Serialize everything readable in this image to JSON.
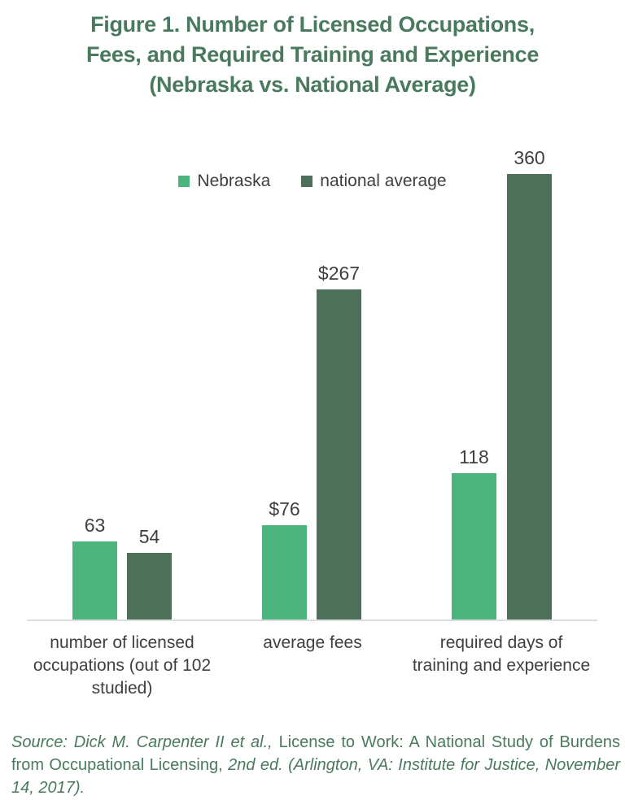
{
  "figure": {
    "title_lines": [
      "Figure 1. Number of Licensed Occupations,",
      "Fees, and Required Training and Experience",
      "(Nebraska vs. National Average)"
    ]
  },
  "colors": {
    "title_green": "#497a5d",
    "nebraska_green": "#4bb57d",
    "national_average_green": "#4c7059",
    "label_gray": "#3f3f3f",
    "axis_line_gray": "#dedede"
  },
  "chart_data": {
    "type": "bar",
    "title": "Figure 1. Number of Licensed Occupations, Fees, and Required Training and Experience (Nebraska vs. National Average)",
    "categories": [
      "number of licensed occupations (out of 102 studied)",
      "average fees",
      "required days of training and experience"
    ],
    "category_lines": [
      [
        "number of licensed",
        "occupations (out of 102",
        "studied)"
      ],
      [
        "average fees"
      ],
      [
        "required days of",
        "training and experience"
      ]
    ],
    "series": [
      {
        "name": "Nebraska",
        "color": "#4bb57d",
        "values": [
          63,
          76,
          118
        ],
        "value_labels": [
          "63",
          "$76",
          "118"
        ]
      },
      {
        "name": "national average",
        "color": "#4c7059",
        "values": [
          54,
          267,
          360
        ],
        "value_labels": [
          "54",
          "$267",
          "360"
        ]
      }
    ],
    "xlabel": "",
    "ylabel": "",
    "ylim": [
      0,
      375
    ],
    "grid": false,
    "legend_position": "top",
    "axis_line": "x-only"
  },
  "source": {
    "segments": [
      {
        "text": "Source: Dick M. Carpenter II et al., ",
        "italic": true
      },
      {
        "text": "License to Work: A National Study of Burdens from Occupational Licensing, ",
        "italic": false
      },
      {
        "text": "2nd ed. (Arlington, VA: Institute for Justice, November 14, 2017).",
        "italic": true
      }
    ]
  }
}
